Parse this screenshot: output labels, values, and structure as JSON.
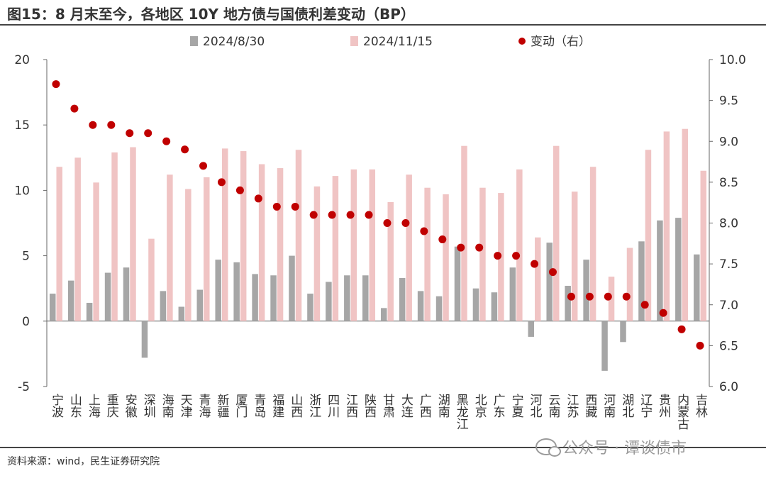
{
  "header": {
    "title": "图15：8 月末至今，各地区 10Y 地方债与国债利差变动（BP）"
  },
  "footer": {
    "source": "资料来源：wind，民生证券研究院",
    "watermark": "公众号 · 谭谈债市",
    "watermark_icon": "wechat-icon"
  },
  "chart_data": {
    "type": "bar",
    "title": "图15：8 月末至今，各地区 10Y 地方债与国债利差变动（BP）",
    "categories": [
      "宁波",
      "山东",
      "上海",
      "重庆",
      "安徽",
      "深圳",
      "海南",
      "天津",
      "青海",
      "新疆",
      "厦门",
      "青岛",
      "福建",
      "山西",
      "浙江",
      "四川",
      "江西",
      "陕西",
      "甘肃",
      "大连",
      "广西",
      "湖南",
      "黑龙江",
      "北京",
      "广东",
      "宁夏",
      "河北",
      "云南",
      "江苏",
      "西藏",
      "河南",
      "湖北",
      "辽宁",
      "贵州",
      "内蒙古",
      "吉林"
    ],
    "series": [
      {
        "name": "2024/8/30",
        "axis": "left",
        "color": "#a6a6a6",
        "values": [
          2.1,
          3.1,
          1.4,
          3.7,
          4.1,
          -2.8,
          2.3,
          1.1,
          2.4,
          4.7,
          4.5,
          3.6,
          3.5,
          5.0,
          2.1,
          3.0,
          3.5,
          3.5,
          1.0,
          3.3,
          2.3,
          1.9,
          5.7,
          2.5,
          2.2,
          4.1,
          -1.2,
          6.0,
          2.7,
          4.7,
          -3.8,
          -1.6,
          6.1,
          7.7,
          7.9,
          5.1
        ]
      },
      {
        "name": "2024/11/15",
        "axis": "left",
        "color": "#f0c4c4",
        "values": [
          11.8,
          12.5,
          10.6,
          12.9,
          13.3,
          6.3,
          11.2,
          10.1,
          11.0,
          13.2,
          13.0,
          12.0,
          11.7,
          13.1,
          10.3,
          11.1,
          11.6,
          11.6,
          9.1,
          11.2,
          10.2,
          9.7,
          13.4,
          10.2,
          9.8,
          11.6,
          6.4,
          13.4,
          9.9,
          11.8,
          3.4,
          5.6,
          13.1,
          14.5,
          14.7,
          11.5
        ]
      },
      {
        "name": "变动（右）",
        "axis": "right",
        "type": "scatter",
        "color": "#c00000",
        "values": [
          9.7,
          9.4,
          9.2,
          9.2,
          9.1,
          9.1,
          9.0,
          8.9,
          8.7,
          8.5,
          8.4,
          8.3,
          8.2,
          8.2,
          8.1,
          8.1,
          8.1,
          8.1,
          8.0,
          8.0,
          7.9,
          7.8,
          7.7,
          7.7,
          7.6,
          7.6,
          7.5,
          7.4,
          7.1,
          7.1,
          7.1,
          7.1,
          7.0,
          6.9,
          6.7,
          6.5
        ]
      }
    ],
    "left_axis": {
      "ylim": [
        -5,
        20
      ],
      "ticks": [
        "-5",
        "0",
        "5",
        "10",
        "15",
        "20"
      ]
    },
    "right_axis": {
      "ylim": [
        6.0,
        10.0
      ],
      "ticks": [
        "6.0",
        "6.5",
        "7.0",
        "7.5",
        "8.0",
        "8.5",
        "9.0",
        "9.5",
        "10.0"
      ]
    },
    "legend": {
      "position": "top",
      "items": [
        "2024/8/30",
        "2024/11/15",
        "变动（右）"
      ]
    },
    "grid": false
  }
}
